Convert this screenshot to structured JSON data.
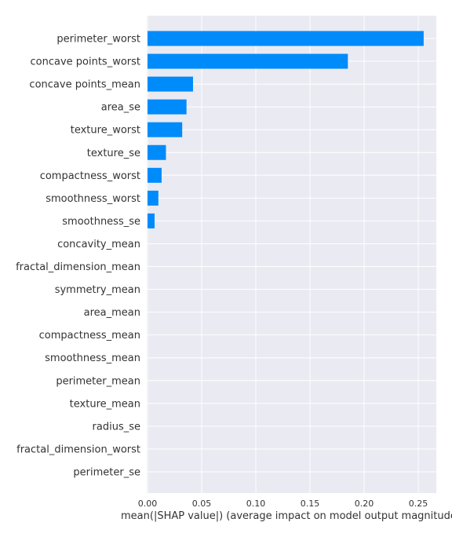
{
  "chart_data": {
    "type": "bar",
    "orientation": "horizontal",
    "categories": [
      "perimeter_worst",
      "concave points_worst",
      "concave points_mean",
      "area_se",
      "texture_worst",
      "texture_se",
      "compactness_worst",
      "smoothness_worst",
      "smoothness_se",
      "concavity_mean",
      "fractal_dimension_mean",
      "symmetry_mean",
      "area_mean",
      "compactness_mean",
      "smoothness_mean",
      "perimeter_mean",
      "texture_mean",
      "radius_se",
      "fractal_dimension_worst",
      "perimeter_se"
    ],
    "values": [
      0.255,
      0.185,
      0.042,
      0.036,
      0.032,
      0.017,
      0.013,
      0.01,
      0.0065,
      0,
      0,
      0,
      0,
      0,
      0,
      0,
      0,
      0,
      0,
      0
    ],
    "xlim": [
      0,
      0.27
    ],
    "xticks": [
      0.0,
      0.05,
      0.1,
      0.15,
      0.2,
      0.25
    ],
    "xtick_labels": [
      "0.00",
      "0.05",
      "0.10",
      "0.15",
      "0.20",
      "0.25"
    ],
    "xlabel": "mean(|SHAP value|) (average impact on model output magnitude)",
    "grid": true,
    "bar_color": "#008bfb",
    "background_color": "#eaeaf2"
  }
}
